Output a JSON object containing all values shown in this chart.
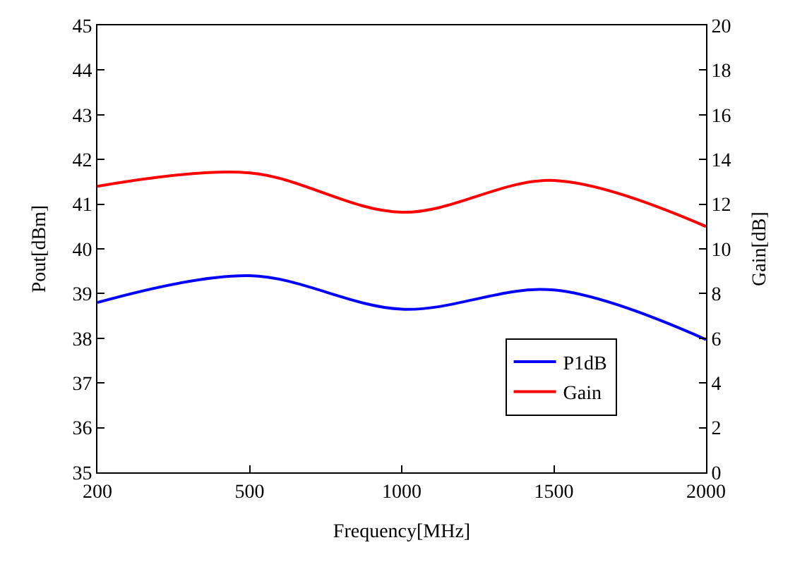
{
  "chart_data": {
    "type": "line",
    "xlabel": "Frequency[MHz]",
    "ylabel": "Pout[dBm]",
    "y2label": "Gain[dB]",
    "categories": [
      "200",
      "500",
      "1000",
      "1500",
      "2000"
    ],
    "series": [
      {
        "name": "P1dB",
        "color": "#0000ff",
        "values": [
          38.8,
          39.4,
          38.65,
          39.08,
          37.97
        ]
      },
      {
        "name": "Gain",
        "color": "#ff0000",
        "values": [
          12.8,
          13.4,
          11.64,
          13.06,
          11.0
        ],
        "axis": "y2"
      }
    ],
    "ylim": [
      35,
      45
    ],
    "yticks": [
      35,
      36,
      37,
      38,
      39,
      40,
      41,
      42,
      43,
      44,
      45
    ],
    "y2lim": [
      0,
      20
    ],
    "y2ticks": [
      0,
      2,
      4,
      6,
      8,
      10,
      12,
      14,
      16,
      18,
      20
    ],
    "legend": "bottom right",
    "marker": "none",
    "line_style": "solid"
  }
}
